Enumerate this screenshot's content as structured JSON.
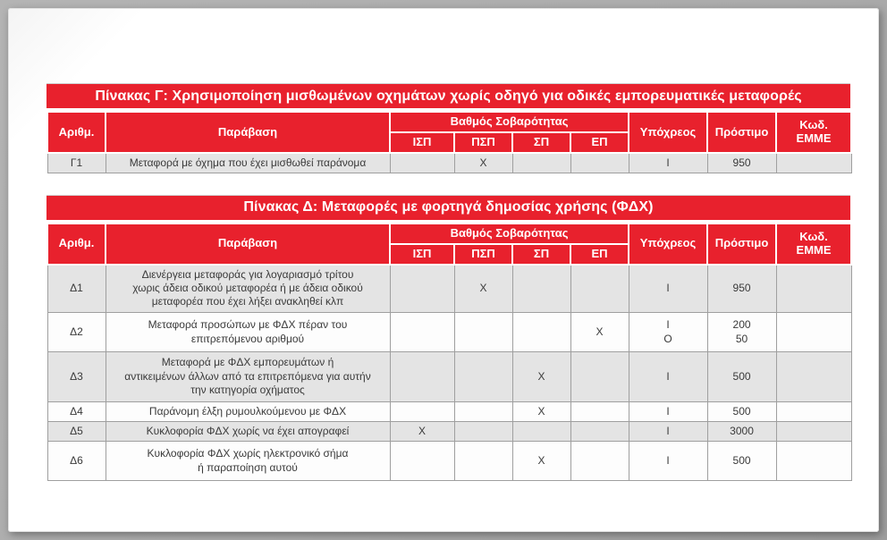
{
  "colors": {
    "accent_red": "#e8212d",
    "row_alt_gray": "#e4e4e4",
    "row_white": "#fdfdfd",
    "grid_line": "#9f9f9f",
    "frame_gray": "#ababab",
    "body_text": "#3a3a3a"
  },
  "tables": [
    {
      "title": "Πίνακας Γ: Χρησιμοποίηση μισθωμένων οχημάτων χωρίς οδηγό για οδικές εμπορευματικές μεταφορές",
      "columns": {
        "num": "Αριθμ.",
        "violation": "Παράβαση",
        "severity_group": "Βαθμός Σοβαρότητας",
        "severity": [
          "ΙΣΠ",
          "ΠΣΠ",
          "ΣΠ",
          "ΕΠ"
        ],
        "liable": "Υπόχρεος",
        "fine": "Πρόστιμο",
        "code": "Κωδ.\nΕΜΜΕ"
      },
      "rows": [
        {
          "num": "Γ1",
          "violation": "Μεταφορά με όχημα που έχει μισθωθεί παράνομα",
          "isp": "",
          "psp": "X",
          "sp": "",
          "ep": "",
          "liable": "Ι",
          "fine": "950",
          "code": ""
        }
      ]
    },
    {
      "title": "Πίνακας Δ: Μεταφορές με φορτηγά δημοσίας χρήσης (ΦΔΧ)",
      "columns": {
        "num": "Αριθμ.",
        "violation": "Παράβαση",
        "severity_group": "Βαθμός Σοβαρότητας",
        "severity": [
          "ΙΣΠ",
          "ΠΣΠ",
          "ΣΠ",
          "ΕΠ"
        ],
        "liable": "Υπόχρεος",
        "fine": "Πρόστιμο",
        "code": "Κωδ.\nΕΜΜΕ"
      },
      "rows": [
        {
          "num": "Δ1",
          "violation": "Διενέργεια μεταφοράς για λογαριασμό τρίτου\nχωρις άδεια οδικού μεταφορέα ή με άδεια οδικού\nμεταφορέα που έχει λήξει ανακληθεί κλπ",
          "isp": "",
          "psp": "X",
          "sp": "",
          "ep": "",
          "liable": "Ι",
          "fine": "950",
          "code": ""
        },
        {
          "num": "Δ2",
          "violation": "Μεταφορά προσώπων με ΦΔΧ πέραν του\nεπιτρεπόμενου αριθμού",
          "isp": "",
          "psp": "",
          "sp": "",
          "ep": "X",
          "liable": "Ι\nΟ",
          "fine": "200\n50",
          "code": ""
        },
        {
          "num": "Δ3",
          "violation": "Μεταφορά με ΦΔΧ εμπορευμάτων ή\nαντικειμένων άλλων από τα επιτρεπόμενα για αυτήν\nτην κατηγορία οχήματος",
          "isp": "",
          "psp": "",
          "sp": "X",
          "ep": "",
          "liable": "Ι",
          "fine": "500",
          "code": ""
        },
        {
          "num": "Δ4",
          "violation": "Παράνομη έλξη ρυμουλκούμενου με ΦΔΧ",
          "isp": "",
          "psp": "",
          "sp": "X",
          "ep": "",
          "liable": "Ι",
          "fine": "500",
          "code": ""
        },
        {
          "num": "Δ5",
          "violation": "Κυκλοφορία ΦΔΧ χωρίς να έχει απογραφεί",
          "isp": "X",
          "psp": "",
          "sp": "",
          "ep": "",
          "liable": "Ι",
          "fine": "3000",
          "code": ""
        },
        {
          "num": "Δ6",
          "violation": "Κυκλοφορία ΦΔΧ χωρίς ηλεκτρονικό σήμα\nή παραποίηση αυτού",
          "isp": "",
          "psp": "",
          "sp": "X",
          "ep": "",
          "liable": "Ι",
          "fine": "500",
          "code": ""
        }
      ]
    }
  ]
}
